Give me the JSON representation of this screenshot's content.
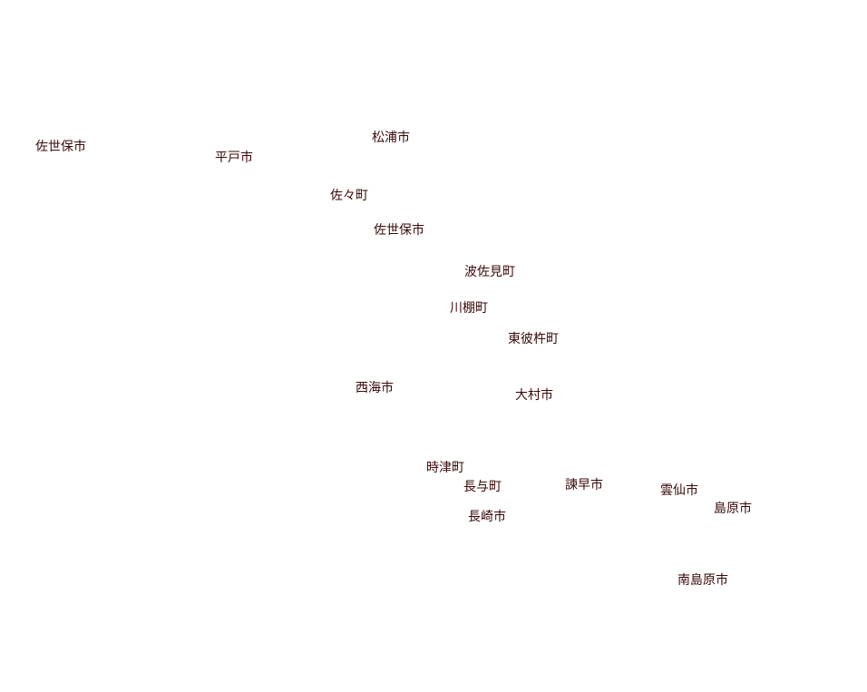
{
  "labels": [
    "佐世保市",
    "平戸市",
    "松浦市",
    "佐々町",
    "佐世保市",
    "波佐見町",
    "川棚町",
    "東彼杵町",
    "西海市",
    "大村市",
    "時津町",
    "長与町",
    "諫早市",
    "雲仙市",
    "島原市",
    "長崎市",
    "南島原市"
  ]
}
